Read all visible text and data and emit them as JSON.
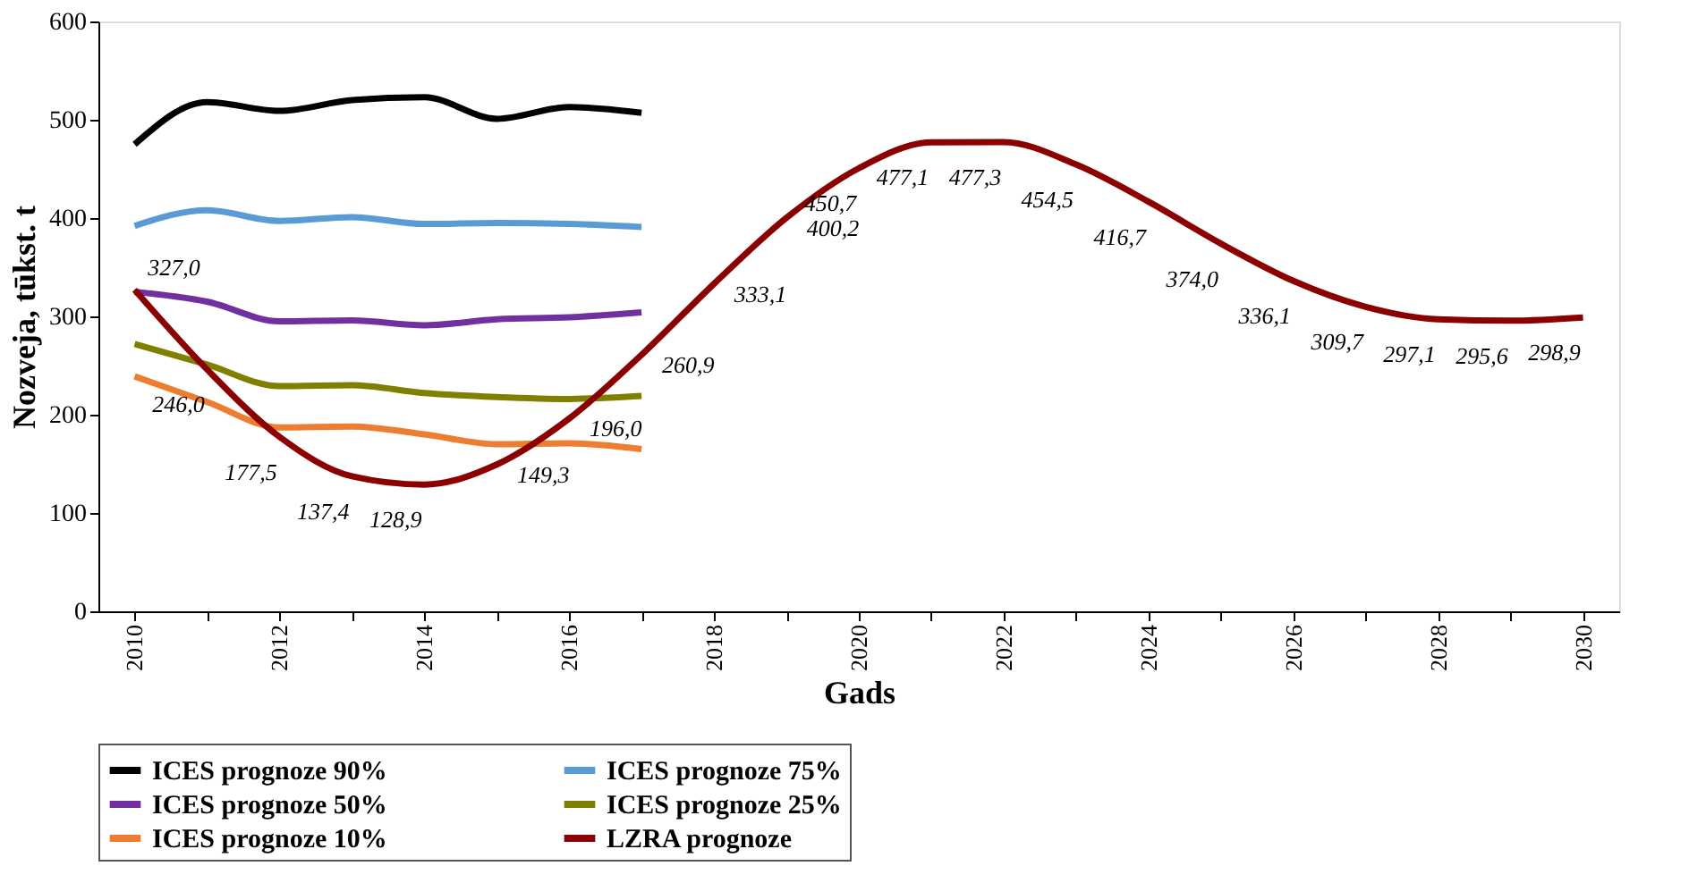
{
  "chart_data": {
    "type": "line",
    "xlabel": "Gads",
    "ylabel": "Nozveja, tūkst. t",
    "categories": [
      "2010",
      null,
      "2012",
      null,
      "2014",
      null,
      "2016",
      null,
      "2018",
      null,
      "2020",
      null,
      "2022",
      null,
      "2024",
      null,
      "2026",
      null,
      "2028",
      null,
      "2030"
    ],
    "ylim": [
      0,
      600
    ],
    "yticks": [
      0,
      100,
      200,
      300,
      400,
      500,
      600
    ],
    "grid": false,
    "legend": "bottom",
    "line_style": "solid",
    "marker": "none",
    "series": [
      {
        "name": "ICES prognoze 90%",
        "color": "#000000",
        "values": [
          475,
          518,
          509,
          520,
          523,
          501,
          513,
          507,
          null,
          null,
          null,
          null,
          null,
          null,
          null,
          null,
          null,
          null,
          null,
          null,
          null
        ]
      },
      {
        "name": "ICES prognoze 75%",
        "color": "#5b9bd5",
        "values": [
          392,
          408,
          397,
          401,
          394,
          395,
          394,
          391,
          null,
          null,
          null,
          null,
          null,
          null,
          null,
          null,
          null,
          null,
          null,
          null,
          null
        ]
      },
      {
        "name": "ICES prognoze 50%",
        "color": "#7030a0",
        "values": [
          325,
          315,
          295,
          296,
          291,
          297,
          299,
          304,
          null,
          null,
          null,
          null,
          null,
          null,
          null,
          null,
          null,
          null,
          null,
          null,
          null
        ]
      },
      {
        "name": "ICES prognoze 25%",
        "color": "#808000",
        "values": [
          272,
          251,
          229,
          230,
          222,
          218,
          216,
          219,
          null,
          null,
          null,
          null,
          null,
          null,
          null,
          null,
          null,
          null,
          null,
          null,
          null
        ]
      },
      {
        "name": "ICES prognoze 10%",
        "color": "#ed7d31",
        "values": [
          239,
          213,
          187,
          188,
          180,
          170,
          171,
          165,
          null,
          null,
          null,
          null,
          null,
          null,
          null,
          null,
          null,
          null,
          null,
          null,
          null
        ]
      },
      {
        "name": "LZRA prognoze",
        "color": "#8b0000",
        "values": [
          327.0,
          246.0,
          177.5,
          137.4,
          128.9,
          149.3,
          196.0,
          260.9,
          333.1,
          400.2,
          450.7,
          477.1,
          477.3,
          454.5,
          416.7,
          374.0,
          336.1,
          309.7,
          297.1,
          295.6,
          298.9
        ],
        "value_labels": [
          "327,0",
          "246,0",
          "177,5",
          "137,4",
          "128,9",
          "149,3",
          "196,0",
          "260,9",
          "333,1",
          "400,2",
          "450,7",
          "477,1",
          "477,3",
          "454,5",
          "416,7",
          "374,0",
          "336,1",
          "309,7",
          "297,1",
          "295,6",
          "298,9"
        ]
      }
    ]
  }
}
